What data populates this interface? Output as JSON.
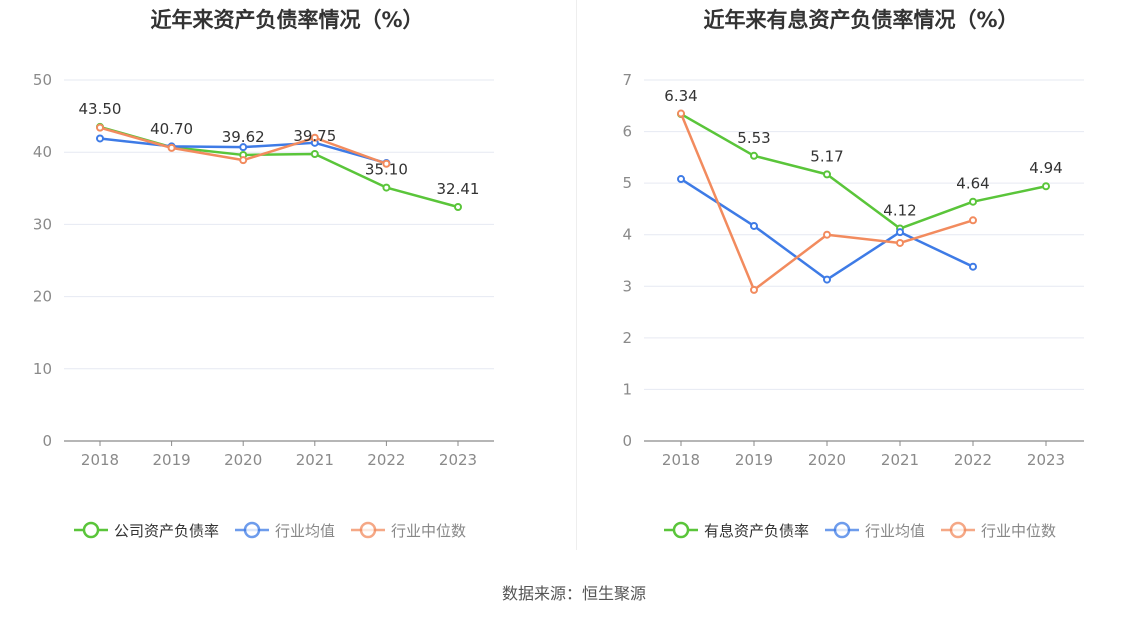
{
  "chart_data": [
    {
      "type": "line",
      "title": "近年来资产负债率情况（%）",
      "categories": [
        "2018",
        "2019",
        "2020",
        "2021",
        "2022",
        "2023"
      ],
      "ylim": [
        0,
        50
      ],
      "yticks": [
        0,
        10,
        20,
        30,
        40,
        50
      ],
      "grid": true,
      "legend_position": "bottom",
      "series": [
        {
          "name": "公司资产负债率",
          "color": "#5ac53a",
          "values": [
            43.5,
            40.7,
            39.62,
            39.75,
            35.1,
            32.41
          ],
          "labels": [
            "43.50",
            "40.70",
            "39.62",
            "39.75",
            "35.10",
            "32.41"
          ]
        },
        {
          "name": "行业均值",
          "color": "#3e7be6",
          "values": [
            41.9,
            40.8,
            40.7,
            41.3,
            38.5,
            null
          ]
        },
        {
          "name": "行业中位数",
          "color": "#f28b5e",
          "values": [
            43.4,
            40.6,
            38.9,
            42.0,
            38.4,
            null
          ]
        }
      ]
    },
    {
      "type": "line",
      "title": "近年来有息资产负债率情况（%）",
      "categories": [
        "2018",
        "2019",
        "2020",
        "2021",
        "2022",
        "2023"
      ],
      "ylim": [
        0,
        7
      ],
      "yticks": [
        0,
        1,
        2,
        3,
        4,
        5,
        6,
        7
      ],
      "grid": true,
      "legend_position": "bottom",
      "series": [
        {
          "name": "有息资产负债率",
          "color": "#5ac53a",
          "values": [
            6.34,
            5.53,
            5.17,
            4.12,
            4.64,
            4.94
          ],
          "labels": [
            "6.34",
            "5.53",
            "5.17",
            "4.12",
            "4.64",
            "4.94"
          ]
        },
        {
          "name": "行业均值",
          "color": "#3e7be6",
          "values": [
            5.08,
            4.17,
            3.13,
            4.05,
            3.38,
            null
          ]
        },
        {
          "name": "行业中位数",
          "color": "#f28b5e",
          "values": [
            6.35,
            2.93,
            4.0,
            3.84,
            4.28,
            null
          ]
        }
      ]
    }
  ],
  "footer": {
    "source_label": "数据来源：",
    "source_name": "恒生聚源"
  }
}
